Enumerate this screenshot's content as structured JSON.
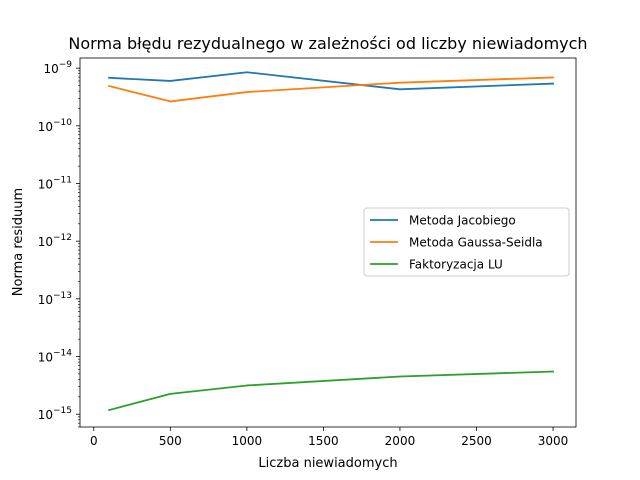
{
  "chart_data": {
    "type": "line",
    "title": "Norma błędu rezydualnego w zależności od liczby niewiadomych",
    "xlabel": "Liczba niewiadomych",
    "ylabel": "Norma residuum",
    "xlim": [
      -90,
      3150
    ],
    "ylim": [
      6e-16,
      1.5e-09
    ],
    "yscale": "log",
    "grid": false,
    "legend_position": "center-right",
    "x_ticks": [
      0,
      500,
      1000,
      1500,
      2000,
      2500,
      3000
    ],
    "x_tick_labels": [
      "0",
      "500",
      "1000",
      "1500",
      "2000",
      "2500",
      "3000"
    ],
    "y_ticks": [
      1e-15,
      1e-14,
      1e-13,
      1e-12,
      1e-11,
      1e-10,
      1e-09
    ],
    "y_tick_bases": [
      "10",
      "10",
      "10",
      "10",
      "10",
      "10",
      "10"
    ],
    "y_tick_exponents": [
      "−15",
      "−14",
      "−13",
      "−12",
      "−11",
      "−10",
      "−9"
    ],
    "x": [
      100,
      500,
      1000,
      2000,
      3000
    ],
    "series": [
      {
        "name": "Metoda Jacobiego",
        "color": "#1f77b4",
        "values": [
          6.8e-10,
          6e-10,
          8.5e-10,
          4.3e-10,
          5.4e-10
        ]
      },
      {
        "name": "Metoda Gaussa-Seidla",
        "color": "#ff7f0e",
        "values": [
          4.9e-10,
          2.65e-10,
          3.85e-10,
          5.6e-10,
          6.9e-10
        ]
      },
      {
        "name": "Faktoryzacja LU",
        "color": "#2ca02c",
        "values": [
          1.18e-15,
          2.25e-15,
          3.15e-15,
          4.5e-15,
          5.5e-15
        ]
      }
    ]
  }
}
